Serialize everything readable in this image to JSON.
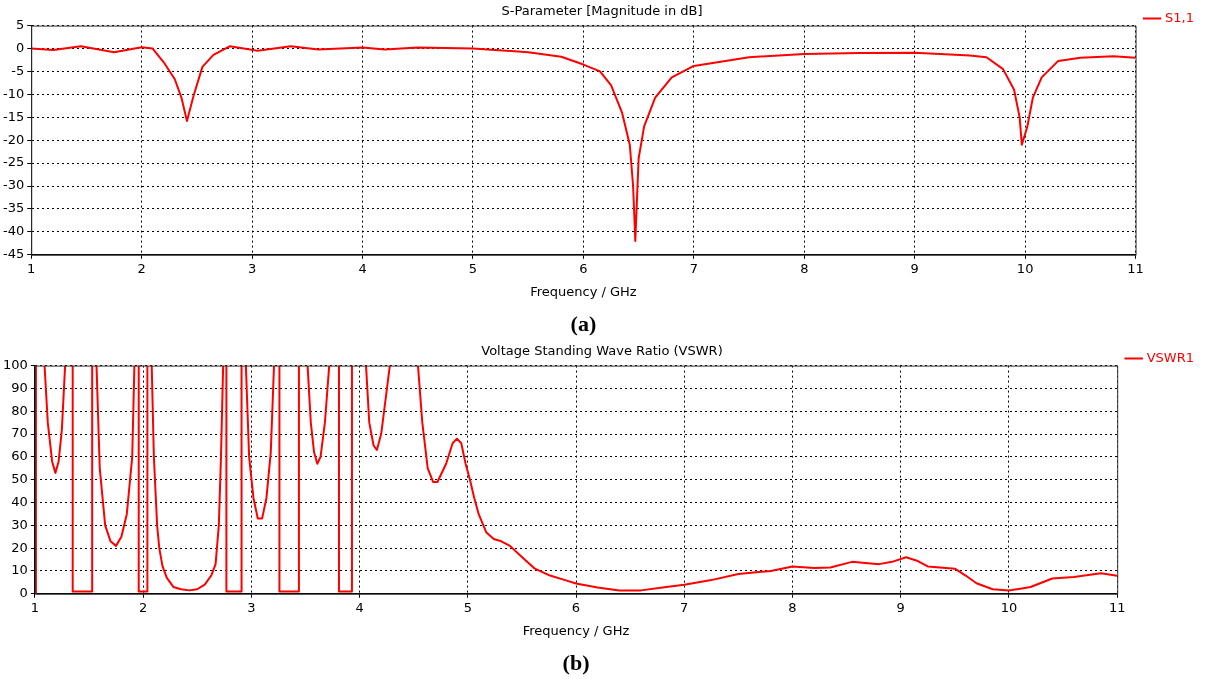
{
  "chart_data": [
    {
      "type": "line",
      "title": "S-Parameter [Magnitude in dB]",
      "xlabel": "Frequency / GHz",
      "annotations": [
        "(a)"
      ],
      "xlim": [
        1,
        11
      ],
      "xticks": [
        1,
        2,
        3,
        4,
        5,
        6,
        7,
        8,
        9,
        10,
        11
      ],
      "ylim": [
        -45,
        5
      ],
      "yticks": [
        5,
        0,
        -5,
        -10,
        -15,
        -20,
        -25,
        -30,
        -35,
        -40,
        -45
      ],
      "grid": true,
      "legend": "top right",
      "series": [
        {
          "name": "S1,1",
          "color": "#ff0000",
          "x": [
            1,
            1.2,
            1.45,
            1.75,
            2.0,
            2.1,
            2.2,
            2.3,
            2.36,
            2.41,
            2.47,
            2.55,
            2.65,
            2.8,
            3.05,
            3.35,
            3.6,
            4.0,
            4.2,
            4.5,
            5.0,
            5.5,
            5.8,
            6.0,
            6.15,
            6.25,
            6.35,
            6.42,
            6.45,
            6.47,
            6.5,
            6.55,
            6.65,
            6.8,
            7.0,
            7.5,
            8.0,
            8.5,
            9.0,
            9.5,
            9.65,
            9.8,
            9.9,
            9.95,
            9.97,
            10.02,
            10.07,
            10.15,
            10.3,
            10.5,
            10.8,
            11
          ],
          "values": [
            0,
            -0.3,
            0.5,
            -0.8,
            0.3,
            0,
            -3,
            -6.7,
            -10.7,
            -15.8,
            -10.3,
            -4,
            -1.4,
            0.5,
            -0.5,
            0.5,
            -0.2,
            0.2,
            -0.2,
            0.2,
            0,
            -0.8,
            -1.8,
            -3.5,
            -5,
            -8,
            -14,
            -21,
            -30,
            -42,
            -24,
            -17,
            -10.7,
            -6.3,
            -3.8,
            -1.9,
            -1.2,
            -1,
            -0.9,
            -1.5,
            -1.9,
            -4.5,
            -9,
            -15,
            -21,
            -17,
            -10.7,
            -6.3,
            -2.7,
            -2,
            -1.7,
            -2
          ]
        }
      ]
    },
    {
      "type": "line",
      "title": "Voltage Standing Wave Ratio (VSWR)",
      "xlabel": "Frequency / GHz",
      "annotations": [
        "(b)"
      ],
      "xlim": [
        1,
        11
      ],
      "xticks": [
        1,
        2,
        3,
        4,
        5,
        6,
        7,
        8,
        9,
        10,
        11
      ],
      "ylim": [
        0,
        100
      ],
      "yticks": [
        100,
        90,
        80,
        70,
        60,
        50,
        40,
        30,
        20,
        10,
        0
      ],
      "grid": true,
      "legend": "top right",
      "series": [
        {
          "name": "VSWR1",
          "color": "#ff0000",
          "x": [
            1.01,
            1.01,
            1.05,
            1.09,
            1.12,
            1.16,
            1.19,
            1.22,
            1.25,
            1.28,
            1.31,
            1.35,
            1.35,
            1.53,
            1.53,
            1.55,
            1.57,
            1.6,
            1.65,
            1.7,
            1.75,
            1.8,
            1.85,
            1.9,
            1.92,
            1.94,
            1.96,
            1.96,
            2.04,
            2.04,
            2.06,
            2.08,
            2.1,
            2.13,
            2.15,
            2.18,
            2.22,
            2.28,
            2.35,
            2.43,
            2.5,
            2.57,
            2.63,
            2.67,
            2.7,
            2.72,
            2.74,
            2.755,
            2.77,
            2.77,
            2.91,
            2.91,
            2.93,
            2.95,
            2.98,
            3.02,
            3.06,
            3.1,
            3.14,
            3.18,
            3.21,
            3.235,
            3.26,
            3.26,
            3.44,
            3.44,
            3.48,
            3.52,
            3.55,
            3.58,
            3.61,
            3.64,
            3.68,
            3.72,
            3.76,
            3.81,
            3.81,
            3.93,
            3.93,
            4.0,
            4.06,
            4.09,
            4.13,
            4.16,
            4.2,
            4.24,
            4.28,
            4.4,
            4.54,
            4.58,
            4.63,
            4.68,
            4.72,
            4.8,
            4.86,
            4.9,
            4.94,
            4.98,
            5.02,
            5.06,
            5.1,
            5.17,
            5.24,
            5.31,
            5.39,
            5.48,
            5.62,
            5.76,
            5.9,
            6.0,
            6.2,
            6.4,
            6.6,
            6.8,
            7.0,
            7.25,
            7.5,
            7.8,
            8.0,
            8.2,
            8.35,
            8.55,
            8.8,
            8.92,
            9.05,
            9.15,
            9.25,
            9.5,
            9.6,
            9.7,
            9.85,
            10.0,
            10.2,
            10.4,
            10.6,
            10.85,
            11
          ],
          "values": [
            0,
            100,
            null,
            100,
            75,
            58,
            53,
            58,
            72,
            100,
            null,
            100,
            1,
            1,
            100,
            null,
            100,
            55,
            30,
            23,
            21,
            25,
            35,
            60,
            100,
            null,
            100,
            1,
            1,
            100,
            null,
            100,
            60,
            30,
            20,
            12,
            7,
            3,
            2,
            1.5,
            2,
            4,
            8,
            13,
            30,
            60,
            100,
            null,
            100,
            1,
            1,
            100,
            null,
            100,
            60,
            42,
            33,
            33,
            42,
            62,
            100,
            null,
            100,
            1,
            1,
            100,
            null,
            100,
            75,
            62,
            57,
            60,
            75,
            100,
            null,
            100,
            1,
            1,
            100,
            null,
            100,
            75,
            65,
            63,
            70,
            85,
            100,
            null,
            100,
            75,
            55,
            49,
            49,
            57,
            66,
            68,
            66,
            57,
            50,
            42,
            35,
            27,
            24,
            23,
            21,
            17,
            11,
            8,
            6,
            4.5,
            2.8,
            1.4,
            1.5,
            2.8,
            4,
            6,
            8.7,
            10,
            12,
            11.3,
            11.5,
            14,
            13,
            14,
            16,
            14.5,
            12,
            11,
            8,
            4.6,
            2,
            1.4,
            3,
            6.7,
            7.4,
            9,
            7.9
          ]
        }
      ]
    }
  ]
}
